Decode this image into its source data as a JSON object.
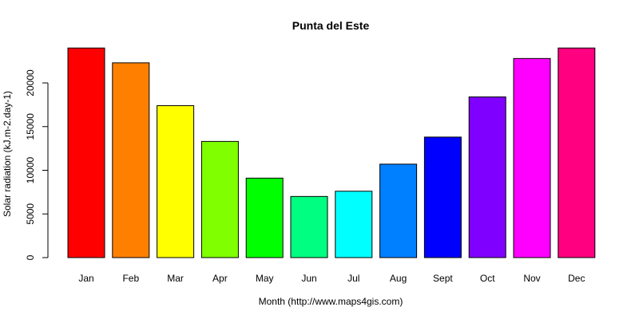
{
  "chart_data": {
    "type": "bar",
    "title": "Punta del Este",
    "xlabel": "Month (http://www.maps4gis.com)",
    "ylabel": "Solar radiation (kJ.m-2.day-1)",
    "categories": [
      "Jan",
      "Feb",
      "Mar",
      "Apr",
      "May",
      "Jun",
      "Jul",
      "Aug",
      "Sept",
      "Oct",
      "Nov",
      "Dec"
    ],
    "values": [
      24000,
      22300,
      17400,
      13300,
      9100,
      7000,
      7600,
      10700,
      13800,
      18400,
      22800,
      24000
    ],
    "colors": [
      "#FF0000",
      "#FF8000",
      "#FFFF00",
      "#80FF00",
      "#00FF00",
      "#00FF80",
      "#00FFFF",
      "#0080FF",
      "#0000FF",
      "#8000FF",
      "#FF00FF",
      "#FF0080"
    ],
    "yticks": [
      0,
      5000,
      10000,
      15000,
      20000
    ],
    "ylim": [
      0,
      24000
    ],
    "grid": false,
    "legend": "none"
  }
}
